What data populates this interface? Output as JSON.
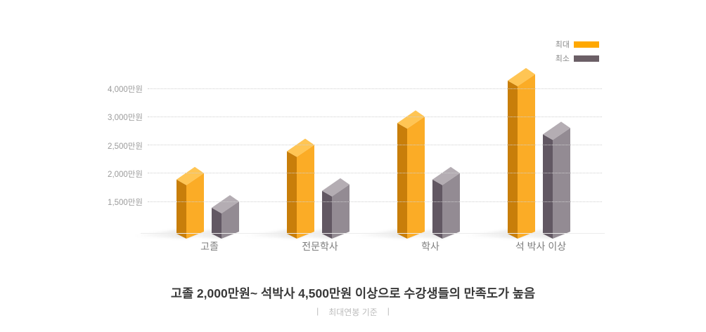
{
  "chart_data": {
    "type": "bar",
    "title": "고졸 2,000만원~ 석박사 4,500만원 이상으로 수강생들의 만족도가 높음",
    "note": "최대연봉 기준",
    "unit": "만원",
    "categories": [
      "고졸",
      "전문학사",
      "학사",
      "석 박사 이상"
    ],
    "series": [
      {
        "name": "최대",
        "values": [
          2000,
          2500,
          3000,
          4500
        ]
      },
      {
        "name": "최소",
        "values": [
          1500,
          1800,
          2000,
          2800
        ]
      }
    ],
    "y_gridlines": [
      {
        "value": 1500,
        "label": "1,500만원"
      },
      {
        "value": 2000,
        "label": "2,000만원"
      },
      {
        "value": 2500,
        "label": "2,500만원"
      },
      {
        "value": 3000,
        "label": "3,000만원"
      },
      {
        "value": 4000,
        "label": "4,000만원"
      }
    ],
    "legend_position": "top-right",
    "grid": "dotted horizontal"
  },
  "legend": {
    "items": [
      {
        "label": "최대",
        "color": "#FFA800"
      },
      {
        "label": "최소",
        "color": "#6B5F66"
      }
    ]
  },
  "caption": {
    "title": "고졸 2,000만원~ 석박사 4,500만원 이상으로 수강생들의 만족도가 높음",
    "subtitle_left_bar": "|",
    "subtitle": "최대연봉 기준",
    "subtitle_right_bar": "|"
  },
  "colors": {
    "max_bar": {
      "front": "#FBAC26",
      "side": "#C87E0A",
      "top": "#FFC554"
    },
    "min_bar": {
      "front": "#938B93",
      "side": "#625863",
      "top": "#B4ADB3"
    },
    "gridline": "#CFCFCF",
    "baseline": "#ECECEC",
    "axis_text": "#9B9B9B",
    "category_text": "#7D7D7D",
    "title_text": "#383838",
    "subtitle_text": "#BCBCBC"
  }
}
